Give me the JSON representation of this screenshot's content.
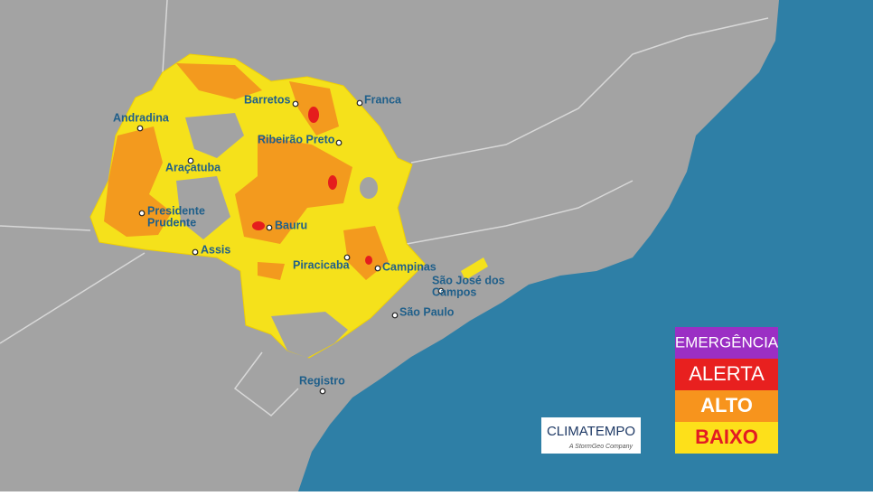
{
  "cities": [
    {
      "lines": [
        "Andradina"
      ]
    },
    {
      "lines": [
        "Araçatuba"
      ]
    },
    {
      "lines": [
        "Presidente",
        "Prudente"
      ]
    },
    {
      "lines": [
        "Assis"
      ]
    },
    {
      "lines": [
        "Bauru"
      ]
    },
    {
      "lines": [
        "Barretos"
      ]
    },
    {
      "lines": [
        "Franca"
      ]
    },
    {
      "lines": [
        "Ribeirão Preto"
      ]
    },
    {
      "lines": [
        "Piracicaba"
      ]
    },
    {
      "lines": [
        "Campinas"
      ]
    },
    {
      "lines": [
        "São José dos",
        "Campos"
      ]
    },
    {
      "lines": [
        "São Paulo"
      ]
    },
    {
      "lines": [
        "Registro"
      ]
    }
  ],
  "legend": [
    {
      "label": "EMERGÊNCIA",
      "color": "#9b2fc4",
      "text_color": "#ffffff"
    },
    {
      "label": "ALERTA",
      "color": "#e8201f",
      "text_color": "#ffffff"
    },
    {
      "label": "ALTO",
      "color": "#f7941d",
      "text_color": "#ffffff"
    },
    {
      "label": "BAIXO",
      "color": "#fde01a",
      "text_color": "#e31b23"
    }
  ],
  "logo": {
    "title": "CLIMATEMPO",
    "subtitle": "A StormGeo Company"
  }
}
